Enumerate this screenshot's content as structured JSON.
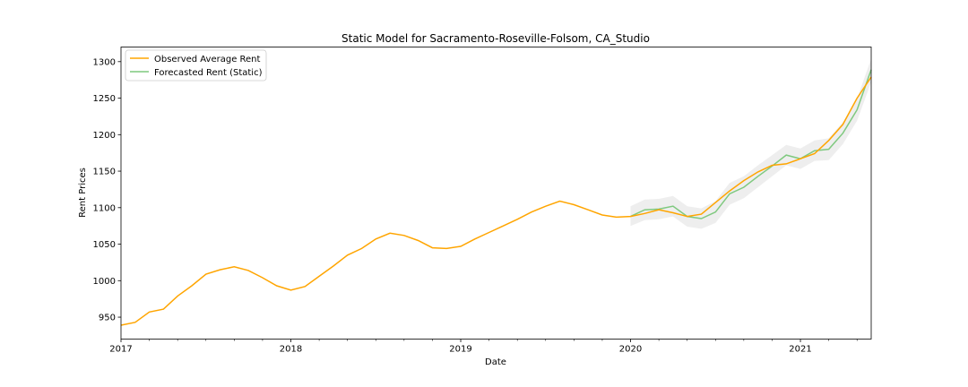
{
  "chart_data": {
    "type": "line",
    "title": "Static Model for Sacramento-Roseville-Folsom, CA_Studio",
    "xlabel": "Date",
    "ylabel": "Rent Prices",
    "xlim": [
      "2017-01",
      "2021-06"
    ],
    "ylim": [
      920,
      1320
    ],
    "x_ticks": [
      {
        "date": "2017-01",
        "label": "2017"
      },
      {
        "date": "2018-01",
        "label": "2018"
      },
      {
        "date": "2019-01",
        "label": "2019"
      },
      {
        "date": "2020-01",
        "label": "2020"
      },
      {
        "date": "2021-01",
        "label": "2021"
      }
    ],
    "y_ticks": [
      950,
      1000,
      1050,
      1100,
      1150,
      1200,
      1250,
      1300
    ],
    "grid": false,
    "legend_position": "upper-left",
    "series": [
      {
        "name": "Observed Average Rent",
        "color": "#FFA500",
        "x": [
          "2017-01",
          "2017-02",
          "2017-03",
          "2017-04",
          "2017-05",
          "2017-06",
          "2017-07",
          "2017-08",
          "2017-09",
          "2017-10",
          "2017-11",
          "2017-12",
          "2018-01",
          "2018-02",
          "2018-03",
          "2018-04",
          "2018-05",
          "2018-06",
          "2018-07",
          "2018-08",
          "2018-09",
          "2018-10",
          "2018-11",
          "2018-12",
          "2019-01",
          "2019-02",
          "2019-03",
          "2019-04",
          "2019-05",
          "2019-06",
          "2019-07",
          "2019-08",
          "2019-09",
          "2019-10",
          "2019-11",
          "2019-12",
          "2020-01",
          "2020-02",
          "2020-03",
          "2020-04",
          "2020-05",
          "2020-06",
          "2020-07",
          "2020-08",
          "2020-09",
          "2020-10",
          "2020-11",
          "2020-12",
          "2021-01",
          "2021-02",
          "2021-03",
          "2021-04",
          "2021-05",
          "2021-06"
        ],
        "values": [
          939,
          943,
          957,
          961,
          979,
          993,
          1009,
          1015,
          1019,
          1014,
          1004,
          993,
          987,
          992,
          1006,
          1020,
          1035,
          1044,
          1057,
          1065,
          1062,
          1055,
          1045,
          1044,
          1047,
          1057,
          1066,
          1075,
          1084,
          1094,
          1102,
          1109,
          1104,
          1097,
          1090,
          1087,
          1088,
          1092,
          1097,
          1093,
          1088,
          1091,
          1107,
          1123,
          1137,
          1149,
          1158,
          1160,
          1167,
          1174,
          1192,
          1214,
          1250,
          1279
        ]
      },
      {
        "name": "Forecasted Rent (Static)",
        "color": "#7FC97F",
        "x": [
          "2020-01",
          "2020-02",
          "2020-03",
          "2020-04",
          "2020-05",
          "2020-06",
          "2020-07",
          "2020-08",
          "2020-09",
          "2020-10",
          "2020-11",
          "2020-12",
          "2021-01",
          "2021-02",
          "2021-03",
          "2021-04",
          "2021-05",
          "2021-06"
        ],
        "values": [
          1088,
          1097,
          1098,
          1102,
          1088,
          1085,
          1094,
          1119,
          1128,
          1143,
          1157,
          1172,
          1167,
          1178,
          1180,
          1202,
          1234,
          1289
        ],
        "ci_lower": [
          1075,
          1083,
          1084,
          1088,
          1074,
          1071,
          1079,
          1104,
          1113,
          1128,
          1143,
          1158,
          1153,
          1164,
          1165,
          1187,
          1219,
          1272
        ],
        "ci_upper": [
          1102,
          1111,
          1112,
          1116,
          1102,
          1099,
          1109,
          1134,
          1143,
          1158,
          1172,
          1186,
          1181,
          1192,
          1195,
          1217,
          1249,
          1304
        ]
      }
    ],
    "confidence_band_color": "#D9D9D9"
  }
}
